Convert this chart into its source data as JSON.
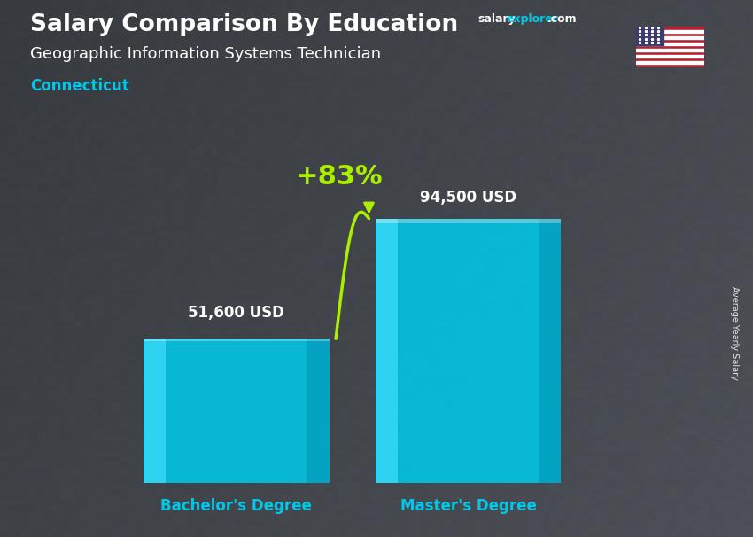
{
  "title_main": "Salary Comparison By Education",
  "salary_text": "salary",
  "explorer_text": "explorer",
  "com_text": ".com",
  "subtitle": "Geographic Information Systems Technician",
  "location": "Connecticut",
  "categories": [
    "Bachelor's Degree",
    "Master's Degree"
  ],
  "values": [
    51600,
    94500
  ],
  "value_labels": [
    "51,600 USD",
    "94,500 USD"
  ],
  "bar_color_main": "#00C8E8",
  "bar_color_light": "#40DFFF",
  "bar_color_dark": "#0090B0",
  "pct_change": "+83%",
  "pct_color": "#AAEE00",
  "arrow_color": "#AAEE00",
  "ylabel": "Average Yearly Salary",
  "text_color_white": "#ffffff",
  "text_color_cyan": "#00C8E8",
  "text_color_salary_white": "#ffffff",
  "text_color_explorer_cyan": "#00C8E8",
  "bar_width": 0.28,
  "ylim": [
    0,
    115000
  ],
  "fig_width": 8.5,
  "fig_height": 6.06,
  "bg_dark": "#3a3a4a",
  "x_positions": [
    0.3,
    0.65
  ]
}
